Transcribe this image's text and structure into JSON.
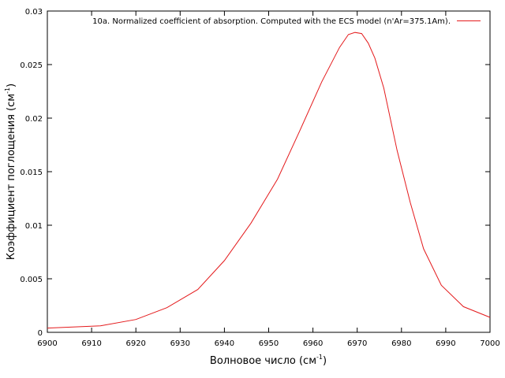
{
  "chart_data": {
    "type": "line",
    "title": "",
    "xlabel": "Волновое число (см",
    "xlabel_superscript": "-1",
    "xlabel_suffix": ")",
    "ylabel": "Коэффициент поглощения (см",
    "ylabel_superscript": "-1",
    "ylabel_suffix": ")",
    "xlim": [
      6900,
      7000
    ],
    "ylim": [
      0,
      0.03
    ],
    "x_ticks": [
      "6900",
      "6910",
      "6920",
      "6930",
      "6940",
      "6950",
      "6960",
      "6970",
      "6980",
      "6990",
      "7000"
    ],
    "y_ticks": [
      "0",
      "0.005",
      "0.01",
      "0.015",
      "0.02",
      "0.025",
      "0.03"
    ],
    "grid": false,
    "legend_position": "top-right",
    "series": [
      {
        "name": "10a. Normalized coefficient of absorption. Computed with the ECS model (n'Ar=375.1Am).",
        "color": "#e41a1c",
        "x": [
          6900,
          6912,
          6920,
          6927,
          6934,
          6940,
          6946,
          6952,
          6957,
          6962,
          6966,
          6968,
          6969.5,
          6971,
          6972.5,
          6974,
          6976,
          6979,
          6982,
          6985,
          6989,
          6994,
          7000
        ],
        "y": [
          0.0004,
          0.0006,
          0.0012,
          0.0023,
          0.004,
          0.0067,
          0.0102,
          0.0143,
          0.0188,
          0.0234,
          0.0266,
          0.0278,
          0.028,
          0.0279,
          0.027,
          0.0256,
          0.0228,
          0.017,
          0.0121,
          0.0078,
          0.0044,
          0.0024,
          0.0014
        ]
      }
    ]
  }
}
